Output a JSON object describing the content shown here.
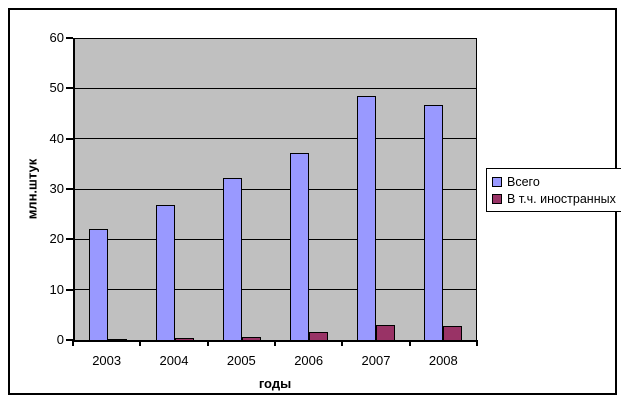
{
  "chart_data": {
    "type": "bar",
    "title": "",
    "categories": [
      "2003",
      "2004",
      "2005",
      "2006",
      "2007",
      "2008"
    ],
    "series": [
      {
        "name": "Всего",
        "color": "#9999FF",
        "values": [
          22.2,
          27.0,
          32.3,
          37.3,
          48.7,
          46.9
        ]
      },
      {
        "name": "В т.ч. иностранных",
        "color": "#993366",
        "values": [
          0.2,
          0.4,
          0.7,
          1.5,
          2.9,
          2.7
        ]
      }
    ],
    "xlabel": "годы",
    "ylabel": "млн.штук",
    "ylim": [
      0,
      60
    ],
    "ytick_interval": 10,
    "ytick_labels": [
      "0",
      "10",
      "20",
      "30",
      "40",
      "50",
      "60"
    ],
    "grid": true,
    "legend_position": "right",
    "colors": {
      "plot_background": "#C0C0C0",
      "gridline": "#000000",
      "axis": "#000000",
      "text": "#000000",
      "chart_background": "#FFFFFF"
    }
  }
}
